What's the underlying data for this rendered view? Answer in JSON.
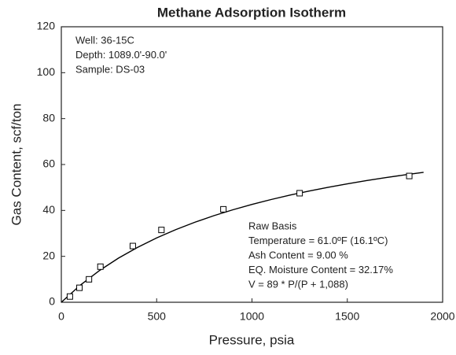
{
  "chart_data": {
    "type": "scatter",
    "title": "Methane Adsorption Isotherm",
    "xlabel": "Pressure, psia",
    "ylabel": "Gas Content, scf/ton",
    "xlim": [
      0,
      2000
    ],
    "xticks": [
      0,
      500,
      1000,
      1500,
      2000
    ],
    "ylim": [
      0,
      120
    ],
    "yticks": [
      0,
      20,
      40,
      60,
      80,
      100,
      120
    ],
    "color": "#000000",
    "points": {
      "x": [
        45,
        95,
        145,
        205,
        375,
        525,
        850,
        1250,
        1825
      ],
      "values": [
        2.5,
        6.3,
        10,
        15.5,
        24.5,
        31.5,
        40.5,
        47.5,
        55
      ]
    },
    "fit": {
      "x": [
        0,
        100,
        200,
        300,
        400,
        500,
        600,
        700,
        800,
        900,
        1000,
        1100,
        1200,
        1300,
        1400,
        1500,
        1600,
        1700,
        1800,
        1900
      ],
      "values": [
        0,
        7.49,
        13.82,
        19.24,
        23.92,
        28.02,
        31.64,
        34.84,
        37.71,
        40.29,
        42.62,
        44.74,
        46.68,
        48.45,
        50.08,
        51.58,
        52.98,
        54.27,
        55.47,
        56.59
      ]
    },
    "annotations": [
      [
        "Well: 36-15C",
        "Depth: 1089.0'-90.0'",
        "Sample: DS-03"
      ],
      [
        "Raw Basis",
        "Temperature = 61.0ºF (16.1ºC)",
        "Ash Content = 9.00 %",
        "EQ. Moisture Content = 32.17%",
        "V = 89 * P/(P + 1,088)"
      ]
    ]
  }
}
